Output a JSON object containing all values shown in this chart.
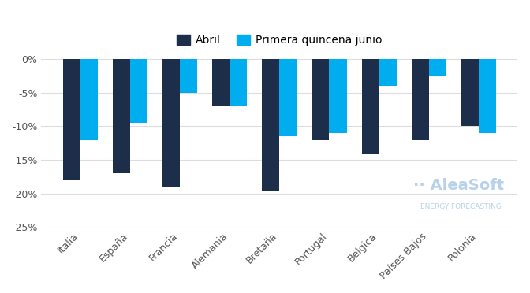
{
  "categories": [
    "Italia",
    "España",
    "Francia",
    "Alemania",
    "Bretaña",
    "Portugal",
    "Bélgica",
    "Países Bajos",
    "Polonia"
  ],
  "abril": [
    -18,
    -17,
    -19,
    -7,
    -19.5,
    -12,
    -14,
    -12,
    -10
  ],
  "junio": [
    -12,
    -9.5,
    -5,
    -7,
    -11.5,
    -11,
    -4,
    -2.5,
    -11
  ],
  "color_abril": "#1c2e4a",
  "color_junio": "#00aeef",
  "legend_abril": "Abril",
  "legend_junio": "Primera quincena junio",
  "ylim": [
    -25,
    0.5
  ],
  "yticks": [
    0,
    -5,
    -10,
    -15,
    -20,
    -25
  ],
  "ytick_labels": [
    "0%",
    "-5%",
    "-10%",
    "-15%",
    "-20%",
    "-25%"
  ],
  "background_color": "#ffffff",
  "grid_color": "#dddddd",
  "watermark_line1": "·· AleaSoft",
  "watermark_line2": "ENERGY FORECASTING"
}
